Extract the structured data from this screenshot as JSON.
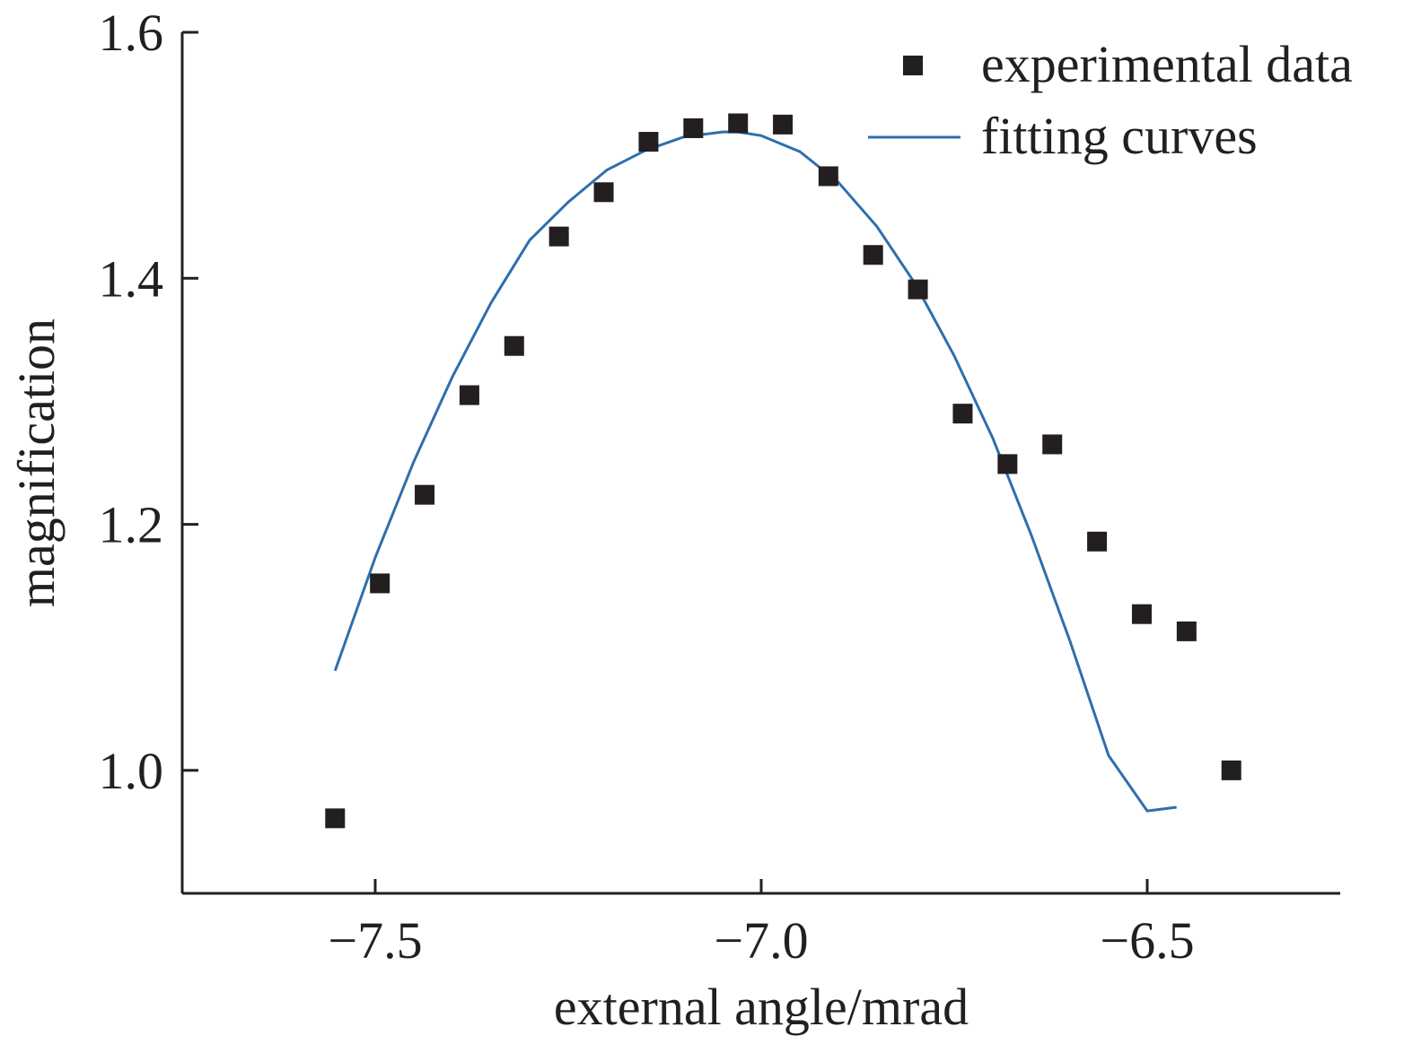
{
  "chart_data": {
    "type": "scatter",
    "title": "",
    "xlabel": "external angle/mrad",
    "ylabel": "magnification",
    "xlim": [
      -7.75,
      -6.25
    ],
    "ylim": [
      0.9,
      1.6
    ],
    "xticks": [
      -7.5,
      -7.0,
      -6.5
    ],
    "xtick_labels": [
      "−7.5",
      "−7.0",
      "−6.5"
    ],
    "yticks": [
      1.0,
      1.2,
      1.4,
      1.6
    ],
    "ytick_labels": [
      "1.0",
      "1.2",
      "1.4",
      "1.6"
    ],
    "grid": false,
    "legend_position": "top-right",
    "series": [
      {
        "name": "experimental data",
        "kind": "scatter",
        "marker": "square",
        "color": "#231f20",
        "x": [
          -7.552,
          -7.494,
          -7.436,
          -7.378,
          -7.32,
          -7.262,
          -7.204,
          -7.146,
          -7.088,
          -7.03,
          -6.972,
          -6.913,
          -6.855,
          -6.797,
          -6.739,
          -6.681,
          -6.623,
          -6.565,
          -6.507,
          -6.449,
          -6.391
        ],
        "y": [
          0.961,
          1.152,
          1.224,
          1.305,
          1.345,
          1.434,
          1.47,
          1.511,
          1.522,
          1.526,
          1.525,
          1.483,
          1.419,
          1.391,
          1.29,
          1.249,
          1.265,
          1.186,
          1.127,
          1.113,
          1.0
        ]
      },
      {
        "name": "fitting curves",
        "kind": "line",
        "color": "#2e6fad",
        "x": [
          -7.552,
          -7.5,
          -7.45,
          -7.4,
          -7.35,
          -7.3,
          -7.25,
          -7.2,
          -7.15,
          -7.1,
          -7.05,
          -7.03,
          -7.0,
          -6.95,
          -6.9,
          -6.85,
          -6.8,
          -6.75,
          -6.7,
          -6.65,
          -6.6,
          -6.55,
          -6.5,
          -6.462
        ],
        "y": [
          1.081,
          1.173,
          1.251,
          1.32,
          1.38,
          1.431,
          1.462,
          1.488,
          1.504,
          1.515,
          1.519,
          1.519,
          1.516,
          1.503,
          1.478,
          1.442,
          1.395,
          1.337,
          1.27,
          1.191,
          1.105,
          1.012,
          0.967,
          0.97
        ]
      }
    ]
  }
}
